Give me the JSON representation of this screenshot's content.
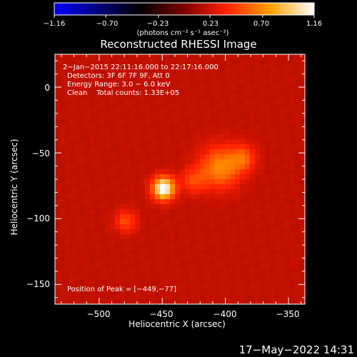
{
  "chart_data": {
    "type": "heatmap",
    "title": "Reconstructed RHESSI Image",
    "xlabel": "Heliocentric X (arcsec)",
    "ylabel": "Heliocentric Y (arcsec)",
    "xlim": [
      -535,
      -337
    ],
    "ylim": [
      -165,
      25
    ],
    "xticks": [
      -500,
      -450,
      -400,
      -350
    ],
    "yticks": [
      0,
      -50,
      -100,
      -150
    ],
    "colorbar": {
      "ticks": [
        -1.16,
        -0.7,
        -0.23,
        0.23,
        0.7,
        1.16
      ],
      "range": [
        -1.16,
        1.16
      ],
      "colormap": "blue-black-red-yellow-white",
      "stops": [
        "#0000ff",
        "#000000",
        "#800000",
        "#ff2000",
        "#ffa000",
        "#ffffff"
      ]
    },
    "sources": [
      {
        "x": -449,
        "y": -77,
        "peak": 1.16,
        "sigma": 6
      },
      {
        "x": -404,
        "y": -61,
        "peak": 0.62,
        "sigma": 11
      },
      {
        "x": -386,
        "y": -54,
        "peak": 0.45,
        "sigma": 7
      },
      {
        "x": -479,
        "y": -102,
        "peak": 0.42,
        "sigma": 6
      },
      {
        "x": -425,
        "y": -71,
        "peak": 0.38,
        "sigma": 7
      }
    ],
    "background_level": 0.21
  },
  "colorbar": {
    "tick_labels": [
      "−1.16",
      "−0.70",
      "−0.23",
      "0.23",
      "0.70",
      "1.16"
    ],
    "unit_label": "(photons cm⁻² s⁻¹ asec⁻²)"
  },
  "axes": {
    "x_tick_labels": [
      "−500",
      "−450",
      "−400",
      "−350"
    ],
    "y_tick_labels": [
      "0",
      "−50",
      "−100",
      "−150"
    ]
  },
  "annotations": {
    "time_range": "2−Jan−2015 22:11:16.000 to 22:17:16.000",
    "detectors": "Detectors: 3F 6F 7F 9F, Att 0",
    "energy_range": "Energy Range: 3.0 − 6.0 keV",
    "method_counts": "Clean    Total counts: 1.33E+05",
    "peak_position": "Position of Peak = [−449,−77]"
  },
  "footer": {
    "timestamp": "17−May−2022 14:31"
  }
}
